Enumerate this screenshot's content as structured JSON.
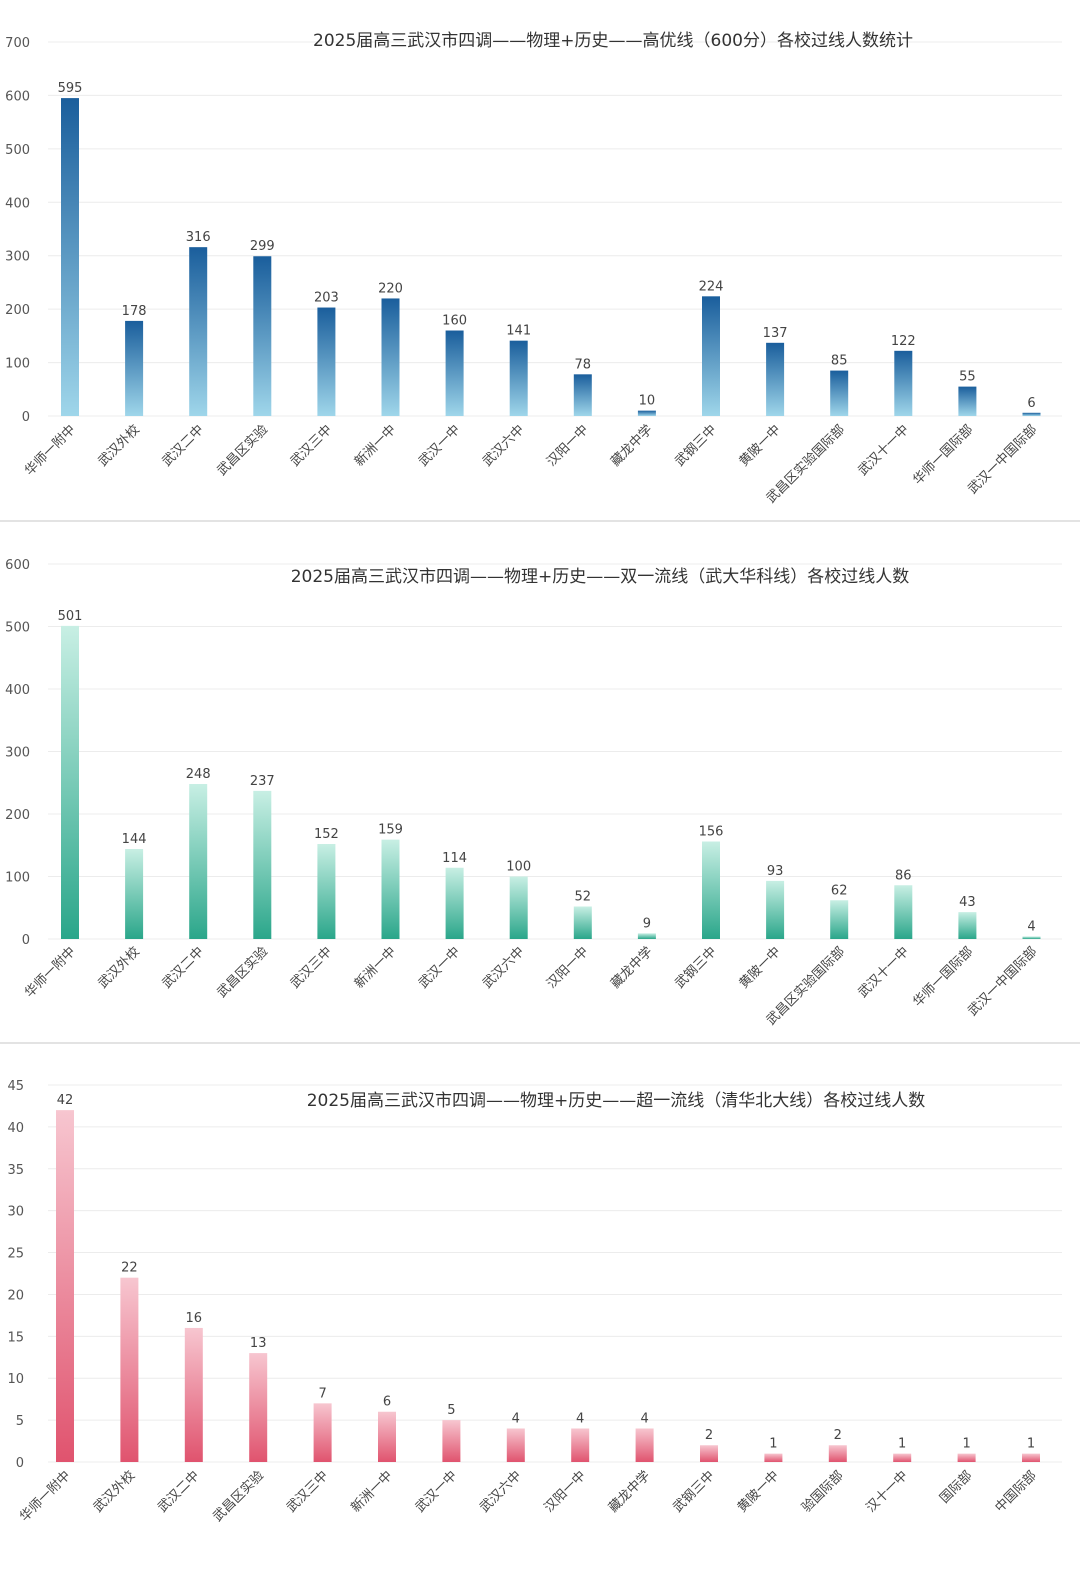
{
  "charts": [
    {
      "id": "high",
      "title": "2025届高三武汉市四调——物理+历史——高优线（600分）各校过线人数统计",
      "categories": [
        "华师一附中",
        "武汉外校",
        "武汉二中",
        "武昌区实验",
        "武汉三中",
        "新洲一中",
        "武汉一中",
        "武汉六中",
        "汉阳一中",
        "藏龙中学",
        "武钢三中",
        "黄陂一中",
        "武昌区实验国际部",
        "武汉十一中",
        "华师一国际部",
        "武汉一中国际部"
      ],
      "values": [
        595,
        178,
        316,
        299,
        203,
        220,
        160,
        141,
        78,
        10,
        224,
        137,
        85,
        122,
        55,
        6
      ],
      "yticks": [
        0,
        100,
        200,
        300,
        400,
        500,
        600,
        700
      ],
      "ylim": [
        0,
        700
      ],
      "colors": {
        "top": "#1a5e9c",
        "bottom": "#9fd6ea"
      }
    },
    {
      "id": "double",
      "title": "2025届高三武汉市四调——物理+历史——双一流线（武大华科线）各校过线人数",
      "categories": [
        "华师一附中",
        "武汉外校",
        "武汉二中",
        "武昌区实验",
        "武汉三中",
        "新洲一中",
        "武汉一中",
        "武汉六中",
        "汉阳一中",
        "藏龙中学",
        "武钢三中",
        "黄陂一中",
        "武昌区实验国际部",
        "武汉十一中",
        "华师一国际部",
        "武汉一中国际部"
      ],
      "values": [
        501,
        144,
        248,
        237,
        152,
        159,
        114,
        100,
        52,
        9,
        156,
        93,
        62,
        86,
        43,
        4
      ],
      "yticks": [
        0,
        100,
        200,
        300,
        400,
        500,
        600
      ],
      "ylim": [
        0,
        600
      ],
      "colors": {
        "top": "#c8efe4",
        "bottom": "#2aa68a"
      }
    },
    {
      "id": "super",
      "title": "2025届高三武汉市四调——物理+历史——超一流线（清华北大线）各校过线人数",
      "categories": [
        "华师一附中",
        "武汉外校",
        "武汉二中",
        "武昌区实验",
        "武汉三中",
        "新洲一中",
        "武汉一中",
        "武汉六中",
        "汉阳一中",
        "藏龙中学",
        "武钢三中",
        "黄陂一中",
        "验国际部",
        "汉十一中",
        "国际部",
        "中国际部"
      ],
      "values": [
        42,
        22,
        16,
        13,
        7,
        6,
        5,
        4,
        4,
        4,
        2,
        1,
        2,
        1,
        1,
        1
      ],
      "yticks": [
        0,
        5,
        10,
        15,
        20,
        25,
        30,
        35,
        40,
        45
      ],
      "ylim": [
        0,
        45
      ],
      "colors": {
        "top": "#f7c6d0",
        "bottom": "#e0536e"
      }
    }
  ],
  "chart_data": [
    {
      "type": "bar",
      "title": "2025届高三武汉市四调——物理+历史——高优线（600分）各校过线人数统计",
      "categories": [
        "华师一附中",
        "武汉外校",
        "武汉二中",
        "武昌区实验",
        "武汉三中",
        "新洲一中",
        "武汉一中",
        "武汉六中",
        "汉阳一中",
        "藏龙中学",
        "武钢三中",
        "黄陂一中",
        "武昌区实验国际部",
        "武汉十一中",
        "华师一国际部",
        "武汉一中国际部"
      ],
      "values": [
        595,
        178,
        316,
        299,
        203,
        220,
        160,
        141,
        78,
        10,
        224,
        137,
        85,
        122,
        55,
        6
      ],
      "ylim": [
        0,
        700
      ],
      "grid": true
    },
    {
      "type": "bar",
      "title": "2025届高三武汉市四调——物理+历史——双一流线（武大华科线）各校过线人数",
      "categories": [
        "华师一附中",
        "武汉外校",
        "武汉二中",
        "武昌区实验",
        "武汉三中",
        "新洲一中",
        "武汉一中",
        "武汉六中",
        "汉阳一中",
        "藏龙中学",
        "武钢三中",
        "黄陂一中",
        "武昌区实验国际部",
        "武汉十一中",
        "华师一国际部",
        "武汉一中国际部"
      ],
      "values": [
        501,
        144,
        248,
        237,
        152,
        159,
        114,
        100,
        52,
        9,
        156,
        93,
        62,
        86,
        43,
        4
      ],
      "ylim": [
        0,
        600
      ],
      "grid": true
    },
    {
      "type": "bar",
      "title": "2025届高三武汉市四调——物理+历史——超一流线（清华北大线）各校过线人数",
      "categories": [
        "华师一附中",
        "武汉外校",
        "武汉二中",
        "武昌区实验",
        "武汉三中",
        "新洲一中",
        "武汉一中",
        "武汉六中",
        "汉阳一中",
        "藏龙中学",
        "武钢三中",
        "黄陂一中",
        "验国际部",
        "汉十一中",
        "国际部",
        "中国际部"
      ],
      "values": [
        42,
        22,
        16,
        13,
        7,
        6,
        5,
        4,
        4,
        4,
        2,
        1,
        2,
        1,
        1,
        1
      ],
      "ylim": [
        0,
        45
      ],
      "grid": true
    }
  ]
}
